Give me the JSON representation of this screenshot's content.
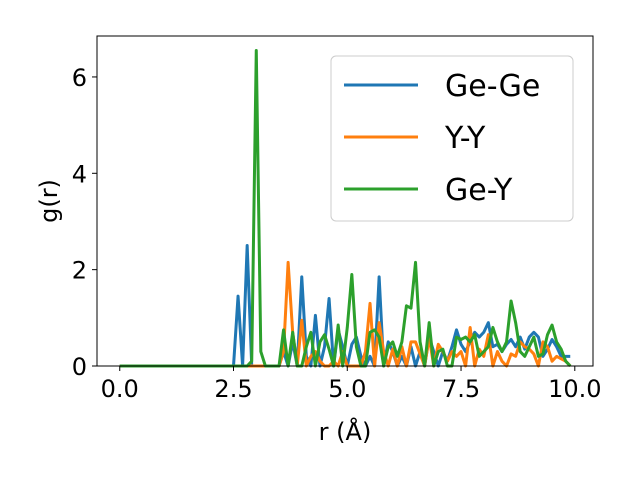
{
  "chart_data": {
    "type": "line",
    "xlabel": "r (Å)",
    "ylabel": "g(r)",
    "xlim": [
      -0.5,
      10.4
    ],
    "ylim": [
      0,
      6.85
    ],
    "xticks": [
      0.0,
      2.5,
      5.0,
      7.5,
      10.0
    ],
    "xtick_labels": [
      "0.0",
      "2.5",
      "5.0",
      "7.5",
      "10.0"
    ],
    "yticks": [
      0,
      2,
      4,
      6
    ],
    "ytick_labels": [
      "0",
      "2",
      "4",
      "6"
    ],
    "grid": false,
    "legend_position": "top-right",
    "series": [
      {
        "name": "Ge-Ge",
        "color": "#1f77b4",
        "points": [
          [
            0,
            0
          ],
          [
            2.5,
            0
          ],
          [
            2.6,
            1.45
          ],
          [
            2.7,
            0
          ],
          [
            2.8,
            2.5
          ],
          [
            2.9,
            0
          ],
          [
            3.5,
            0
          ],
          [
            3.6,
            0.3
          ],
          [
            3.7,
            0
          ],
          [
            3.8,
            0.5
          ],
          [
            3.9,
            0
          ],
          [
            4.0,
            1.85
          ],
          [
            4.1,
            0.2
          ],
          [
            4.2,
            0
          ],
          [
            4.3,
            1.05
          ],
          [
            4.4,
            0
          ],
          [
            4.5,
            0.4
          ],
          [
            4.6,
            1.4
          ],
          [
            4.7,
            0
          ],
          [
            4.8,
            0.75
          ],
          [
            4.9,
            0.4
          ],
          [
            5.0,
            0
          ],
          [
            5.1,
            0.45
          ],
          [
            5.2,
            0.6
          ],
          [
            5.3,
            0.2
          ],
          [
            5.4,
            0
          ],
          [
            5.5,
            0.2
          ],
          [
            5.6,
            0
          ],
          [
            5.7,
            1.85
          ],
          [
            5.8,
            0
          ],
          [
            5.9,
            0.5
          ],
          [
            6.0,
            0.3
          ],
          [
            6.1,
            0
          ],
          [
            6.2,
            0.2
          ],
          [
            6.3,
            0
          ],
          [
            6.4,
            0.4
          ],
          [
            6.5,
            0
          ],
          [
            6.6,
            0.3
          ],
          [
            6.7,
            0
          ],
          [
            6.8,
            0.6
          ],
          [
            6.9,
            0.3
          ],
          [
            7.0,
            0
          ],
          [
            7.1,
            0.3
          ],
          [
            7.2,
            0.1
          ],
          [
            7.3,
            0.4
          ],
          [
            7.4,
            0.75
          ],
          [
            7.5,
            0.45
          ],
          [
            7.6,
            0.3
          ],
          [
            7.7,
            0.5
          ],
          [
            7.8,
            0.7
          ],
          [
            7.9,
            0.6
          ],
          [
            8.0,
            0.7
          ],
          [
            8.1,
            0.9
          ],
          [
            8.2,
            0.4
          ],
          [
            8.3,
            0.45
          ],
          [
            8.4,
            0.3
          ],
          [
            8.5,
            0.45
          ],
          [
            8.6,
            0.55
          ],
          [
            8.7,
            0.4
          ],
          [
            8.8,
            0.6
          ],
          [
            8.9,
            0.35
          ],
          [
            9.0,
            0.6
          ],
          [
            9.1,
            0.7
          ],
          [
            9.2,
            0.6
          ],
          [
            9.3,
            0.2
          ],
          [
            9.4,
            0.35
          ],
          [
            9.5,
            0.55
          ],
          [
            9.6,
            0.4
          ],
          [
            9.7,
            0.2
          ],
          [
            9.8,
            0.2
          ],
          [
            9.9,
            0.2
          ]
        ]
      },
      {
        "name": "Y-Y",
        "color": "#ff7f0e",
        "points": [
          [
            0,
            0
          ],
          [
            3.5,
            0
          ],
          [
            3.6,
            0.3
          ],
          [
            3.7,
            2.15
          ],
          [
            3.8,
            0.7
          ],
          [
            3.9,
            0
          ],
          [
            4.0,
            0.95
          ],
          [
            4.1,
            0
          ],
          [
            4.2,
            0.2
          ],
          [
            4.3,
            0.3
          ],
          [
            4.4,
            0.1
          ],
          [
            4.5,
            0
          ],
          [
            4.6,
            0
          ],
          [
            4.7,
            0.1
          ],
          [
            4.8,
            0
          ],
          [
            4.9,
            0.3
          ],
          [
            5.0,
            0
          ],
          [
            5.1,
            0
          ],
          [
            5.2,
            0
          ],
          [
            5.3,
            0
          ],
          [
            5.4,
            0.3
          ],
          [
            5.5,
            1.3
          ],
          [
            5.6,
            0
          ],
          [
            5.7,
            0.9
          ],
          [
            5.8,
            0.3
          ],
          [
            5.9,
            0
          ],
          [
            6.0,
            0.35
          ],
          [
            6.1,
            0
          ],
          [
            6.2,
            0.4
          ],
          [
            6.3,
            0
          ],
          [
            6.4,
            0.5
          ],
          [
            6.5,
            0.5
          ],
          [
            6.6,
            0.25
          ],
          [
            6.7,
            0
          ],
          [
            6.8,
            0.6
          ],
          [
            6.9,
            0
          ],
          [
            7.0,
            0.45
          ],
          [
            7.1,
            0.3
          ],
          [
            7.2,
            0.1
          ],
          [
            7.3,
            0.3
          ],
          [
            7.4,
            0.2
          ],
          [
            7.5,
            0.3
          ],
          [
            7.6,
            0
          ],
          [
            7.7,
            0.8
          ],
          [
            7.8,
            0
          ],
          [
            7.9,
            0.35
          ],
          [
            8.0,
            0.2
          ],
          [
            8.1,
            0.65
          ],
          [
            8.2,
            0
          ],
          [
            8.3,
            0.3
          ],
          [
            8.4,
            0.1
          ],
          [
            8.5,
            0
          ],
          [
            8.6,
            0.25
          ],
          [
            8.7,
            0.2
          ],
          [
            8.8,
            0.5
          ],
          [
            8.9,
            0.4
          ],
          [
            9.0,
            0.35
          ],
          [
            9.1,
            0.25
          ],
          [
            9.2,
            0
          ],
          [
            9.3,
            0.5
          ],
          [
            9.4,
            0.4
          ],
          [
            9.5,
            0.1
          ],
          [
            9.6,
            0.2
          ],
          [
            9.7,
            0.15
          ],
          [
            9.8,
            0.1
          ],
          [
            9.9,
            0
          ]
        ]
      },
      {
        "name": "Ge-Y",
        "color": "#2ca02c",
        "points": [
          [
            0,
            0
          ],
          [
            2.7,
            0
          ],
          [
            2.8,
            0
          ],
          [
            2.9,
            0.1
          ],
          [
            3.0,
            6.55
          ],
          [
            3.1,
            0.3
          ],
          [
            3.2,
            0
          ],
          [
            3.3,
            0
          ],
          [
            3.4,
            0
          ],
          [
            3.5,
            0
          ],
          [
            3.6,
            0.75
          ],
          [
            3.7,
            0
          ],
          [
            3.8,
            0.7
          ],
          [
            3.9,
            0
          ],
          [
            4.0,
            0
          ],
          [
            4.1,
            0.4
          ],
          [
            4.2,
            0.7
          ],
          [
            4.3,
            0
          ],
          [
            4.4,
            0.5
          ],
          [
            4.5,
            0.65
          ],
          [
            4.6,
            0.35
          ],
          [
            4.7,
            0
          ],
          [
            4.8,
            0.85
          ],
          [
            4.9,
            0
          ],
          [
            5.0,
            0.8
          ],
          [
            5.1,
            1.9
          ],
          [
            5.2,
            0.4
          ],
          [
            5.3,
            0
          ],
          [
            5.4,
            0
          ],
          [
            5.5,
            0.7
          ],
          [
            5.6,
            0.75
          ],
          [
            5.7,
            0.6
          ],
          [
            5.8,
            0
          ],
          [
            5.9,
            0.4
          ],
          [
            6.0,
            0.5
          ],
          [
            6.1,
            0.2
          ],
          [
            6.2,
            0.5
          ],
          [
            6.3,
            1.25
          ],
          [
            6.4,
            1.2
          ],
          [
            6.5,
            2.15
          ],
          [
            6.6,
            0.5
          ],
          [
            6.7,
            0
          ],
          [
            6.8,
            0.9
          ],
          [
            6.9,
            0
          ],
          [
            7.0,
            0.3
          ],
          [
            7.1,
            0.35
          ],
          [
            7.2,
            0
          ],
          [
            7.3,
            0
          ],
          [
            7.4,
            0.6
          ],
          [
            7.5,
            0.55
          ],
          [
            7.6,
            0.6
          ],
          [
            7.7,
            0.5
          ],
          [
            7.8,
            0.65
          ],
          [
            7.9,
            0.2
          ],
          [
            8.0,
            0.3
          ],
          [
            8.1,
            0.4
          ],
          [
            8.2,
            0.8
          ],
          [
            8.3,
            0.5
          ],
          [
            8.4,
            0.3
          ],
          [
            8.5,
            0.5
          ],
          [
            8.6,
            1.35
          ],
          [
            8.7,
            0.9
          ],
          [
            8.8,
            0.3
          ],
          [
            8.9,
            0.2
          ],
          [
            9.0,
            0.4
          ],
          [
            9.1,
            0.6
          ],
          [
            9.2,
            0.2
          ],
          [
            9.3,
            0.25
          ],
          [
            9.4,
            0.65
          ],
          [
            9.5,
            0.85
          ],
          [
            9.6,
            0.5
          ],
          [
            9.7,
            0.35
          ],
          [
            9.8,
            0.1
          ],
          [
            9.9,
            0
          ]
        ]
      }
    ]
  }
}
